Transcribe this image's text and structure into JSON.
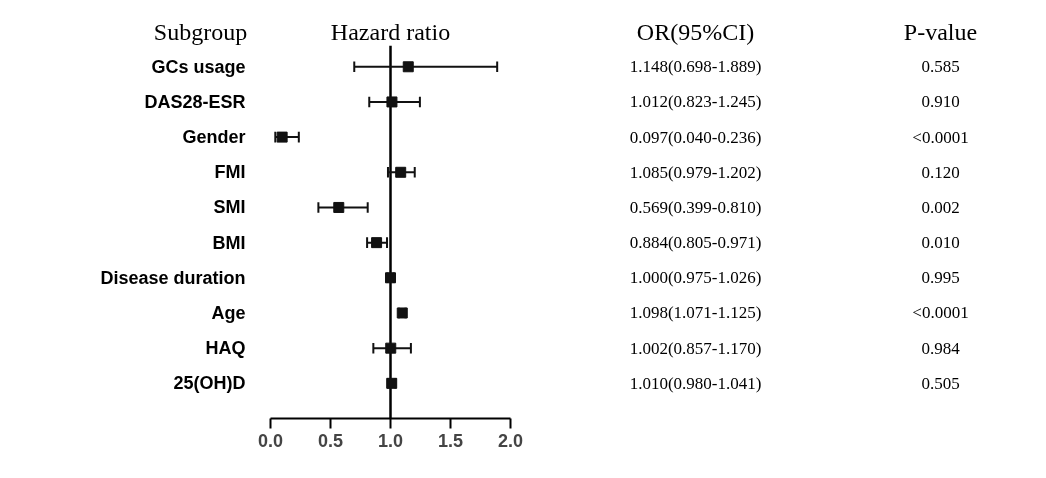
{
  "chart_data": {
    "type": "scatter",
    "orientation": "horizontal",
    "title": "Hazard ratio",
    "ylabel": "Subgroup",
    "categories": [
      "GCs usage",
      "DAS28-ESR",
      "Gender",
      "FMI",
      "SMI",
      "BMI",
      "Disease duration",
      "Age",
      "HAQ",
      "25(OH)D"
    ],
    "values": [
      1.148,
      1.012,
      0.097,
      1.085,
      0.569,
      0.884,
      1.0,
      1.098,
      1.002,
      1.01
    ],
    "errors": [
      [
        0.698,
        1.889
      ],
      [
        0.823,
        1.245
      ],
      [
        0.04,
        0.236
      ],
      [
        0.979,
        1.202
      ],
      [
        0.399,
        0.81
      ],
      [
        0.805,
        0.971
      ],
      [
        0.975,
        1.026
      ],
      [
        1.071,
        1.125
      ],
      [
        0.857,
        1.17
      ],
      [
        0.98,
        1.041
      ]
    ],
    "color": "#111111",
    "marker": "square",
    "xlim": [
      0,
      2
    ],
    "xticks": [
      {
        "value": 0,
        "label": "0.0"
      },
      {
        "value": 0.5,
        "label": "0.5"
      },
      {
        "value": 1,
        "label": "1.0"
      },
      {
        "value": 1.5,
        "label": "1.5"
      },
      {
        "value": 2,
        "label": "2.0"
      }
    ],
    "ref_lines": [
      {
        "axis": "x",
        "value": 1
      }
    ],
    "value_labels": [
      "1.148(0.698-1.889)",
      "1.012(0.823-1.245)",
      "0.097(0.040-0.236)",
      "1.085(0.979-1.202)",
      "0.569(0.399-0.810)",
      "0.884(0.805-0.971)",
      "1.000(0.975-1.026)",
      "1.098(1.071-1.125)",
      "1.002(0.857-1.170)",
      "1.010(0.980-1.041)"
    ],
    "annotations": [
      "OR(95%CI)",
      "P-value",
      "0.585",
      "0.910",
      "<0.0001",
      "0.120",
      "0.002",
      "0.010",
      "0.995",
      "<0.0001",
      "0.984",
      "0.505"
    ],
    "grid": false
  }
}
